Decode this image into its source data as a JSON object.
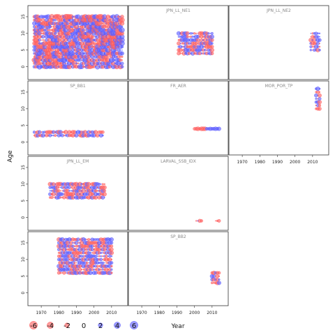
{
  "chart_data": {
    "type": "scatter",
    "subtype": "bubble-residual-grid",
    "xlabel": "Year",
    "ylabel": "Age",
    "xlim": [
      1964,
      2018
    ],
    "ylim": [
      -3,
      17.5
    ],
    "x_ticks": [
      1970,
      1980,
      1990,
      2000,
      2010
    ],
    "y_ticks": [
      0,
      5,
      10,
      15
    ],
    "colors": {
      "negative": "#ff5a5a",
      "positive": "#5a5aff",
      "frame": "#333333"
    },
    "legend": {
      "position": "bottom-left",
      "items": [
        {
          "label": "-6",
          "value": -6
        },
        {
          "label": "-4",
          "value": -4
        },
        {
          "label": "-2",
          "value": -2
        },
        {
          "label": "0",
          "value": 0
        },
        {
          "label": "2",
          "value": 2
        },
        {
          "label": "4",
          "value": 4
        },
        {
          "label": "6",
          "value": 6
        }
      ]
    },
    "panels": [
      {
        "name": "",
        "ages": [
          0,
          15
        ],
        "years": [
          1966,
          2016
        ],
        "pattern": "dense"
      },
      {
        "name": "JPN_LL_NE1",
        "ages": [
          4,
          10
        ],
        "years": [
          1991,
          2010
        ],
        "pattern": "mixed"
      },
      {
        "name": "JPN_LL_NE2",
        "ages": [
          5,
          10
        ],
        "years": [
          2009,
          2014
        ],
        "pattern": "mixed"
      },
      {
        "name": "SP_BB1",
        "ages": [
          2,
          3
        ],
        "years": [
          1966,
          2005
        ],
        "pattern": "mixed"
      },
      {
        "name": "FR_AER",
        "ages": [
          4,
          4
        ],
        "years": [
          2000,
          2014
        ],
        "pattern": "split"
      },
      {
        "name": "MOR_POR_TP",
        "ages": [
          10,
          16
        ],
        "years": [
          2012,
          2014
        ],
        "pattern": "mixed"
      },
      {
        "name": "JPN_LL_EM",
        "ages": [
          6,
          10
        ],
        "years": [
          1975,
          2006
        ],
        "pattern": "mixed"
      },
      {
        "name": "LARVAL_SSB_IDX",
        "ages": [
          -1,
          -1
        ],
        "years": [
          2001,
          2014
        ],
        "pattern": "sparse"
      },
      {
        "name": "",
        "ages": [
          6,
          16
        ],
        "years": [
          1980,
          2010
        ],
        "pattern": "mixed"
      },
      {
        "name": "SP_BB2",
        "ages": [
          3,
          6
        ],
        "years": [
          2010,
          2014
        ],
        "pattern": "mixed"
      }
    ]
  }
}
